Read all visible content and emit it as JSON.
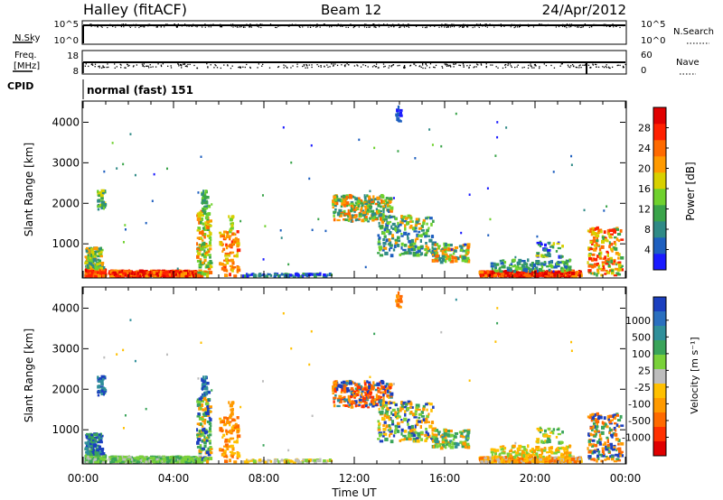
{
  "header": {
    "title": "Halley (fitACF)",
    "beam": "Beam 12",
    "date": "24/Apr/2012"
  },
  "top_panels": {
    "nsky": {
      "label": "N.Sky",
      "yticks_left": [
        "10^5",
        "10^0"
      ],
      "right_label": "N.Search",
      "yticks_right": [
        "10^5",
        "10^0"
      ]
    },
    "freq": {
      "label_line1": "Freq.",
      "label_line2": "[MHz]",
      "yticks_left": [
        "18",
        "8"
      ],
      "right_label": "Nave",
      "yticks_right": [
        "60",
        "0"
      ]
    },
    "cpid": {
      "label": "CPID",
      "text": "normal (fast) 151"
    }
  },
  "chart_data": [
    {
      "type": "heatmap",
      "name": "power",
      "ylabel": "Slant Range [km]",
      "yticks": [
        "1000",
        "2000",
        "3000",
        "4000"
      ],
      "ylim": [
        180,
        4500
      ],
      "xlim": [
        0,
        24
      ],
      "colorbar": {
        "label": "Power [dB]",
        "ticks": [
          "4",
          "8",
          "12",
          "16",
          "20",
          "24",
          "28"
        ],
        "colors": [
          "#1a1aff",
          "#1e5fbf",
          "#2f8a86",
          "#3aa44a",
          "#6fd12e",
          "#d8d000",
          "#ff9a00",
          "#ff6a00",
          "#ff2000",
          "#e00000"
        ]
      }
    },
    {
      "type": "heatmap",
      "name": "velocity",
      "ylabel": "Slant Range [km]",
      "xlabel": "Time UT",
      "xticks": [
        "00:00",
        "04:00",
        "08:00",
        "12:00",
        "16:00",
        "20:00",
        "00:00"
      ],
      "yticks": [
        "1000",
        "2000",
        "3000",
        "4000"
      ],
      "ylim": [
        180,
        4500
      ],
      "xlim": [
        0,
        24
      ],
      "colorbar": {
        "label": "Velocity [m s⁻¹]",
        "ticks": [
          "1000",
          "500",
          "100",
          "25",
          "-25",
          "-100",
          "-500",
          "-1000"
        ],
        "colors": [
          "#1b3fbf",
          "#2a6fbf",
          "#2f8f9a",
          "#3aa45a",
          "#7ad13a",
          "#bdbdbd",
          "#ffc000",
          "#ff9a00",
          "#ff6a00",
          "#ff3000",
          "#e00000"
        ]
      }
    }
  ]
}
